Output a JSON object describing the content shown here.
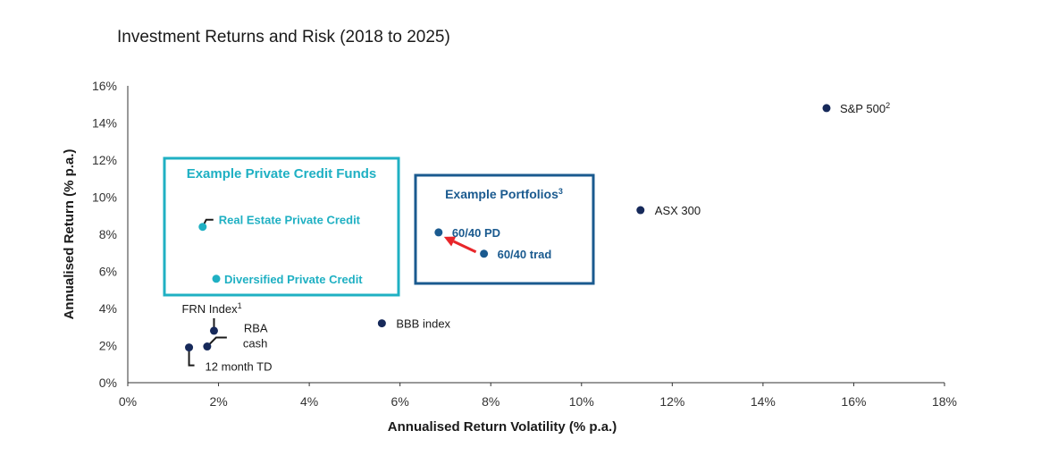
{
  "chart_data": {
    "type": "scatter",
    "title": "Investment Returns and Risk (2018 to 2025)",
    "xlabel": "Annualised Return Volatility (% p.a.)",
    "ylabel": "Annualised Return (% p.a.)",
    "xlim": [
      0,
      18
    ],
    "ylim": [
      0,
      16
    ],
    "x_ticks": [
      "0%",
      "2%",
      "4%",
      "6%",
      "8%",
      "10%",
      "12%",
      "14%",
      "16%",
      "18%"
    ],
    "y_ticks": [
      "0%",
      "2%",
      "4%",
      "6%",
      "8%",
      "10%",
      "12%",
      "14%",
      "16%"
    ],
    "points": [
      {
        "id": "sp500",
        "label": "S&P 500",
        "sup": "2",
        "x": 15.4,
        "y": 14.8,
        "color": "#16295a"
      },
      {
        "id": "asx300",
        "label": "ASX 300",
        "x": 11.3,
        "y": 9.3,
        "color": "#16295a"
      },
      {
        "id": "bbb",
        "label": "BBB index",
        "x": 5.6,
        "y": 3.2,
        "color": "#16295a"
      },
      {
        "id": "frn",
        "label": "FRN Index",
        "sup": "1",
        "x": 1.9,
        "y": 2.8,
        "color": "#16295a"
      },
      {
        "id": "rba",
        "label_lines": [
          "RBA",
          "cash"
        ],
        "x": 1.75,
        "y": 1.95,
        "color": "#16295a"
      },
      {
        "id": "td",
        "label": "12 month TD",
        "x": 1.35,
        "y": 1.9,
        "color": "#16295a"
      },
      {
        "id": "repc",
        "label": "Real Estate Private Credit",
        "x": 1.65,
        "y": 8.4,
        "color": "#1fb0c3"
      },
      {
        "id": "dpc",
        "label": "Diversified Private Credit",
        "x": 1.95,
        "y": 5.6,
        "color": "#1fb0c3"
      },
      {
        "id": "pd6040",
        "label": "60/40 PD",
        "x": 6.85,
        "y": 8.1,
        "color": "#1a5a8f"
      },
      {
        "id": "trad6040",
        "label": "60/40 trad",
        "x": 7.85,
        "y": 6.95,
        "color": "#1a5a8f"
      }
    ],
    "groups": [
      {
        "id": "private-credit",
        "title": "Example Private Credit Funds",
        "color": "#1fb0c3"
      },
      {
        "id": "portfolios",
        "title": "Example Portfolios",
        "sup": "3",
        "color": "#1a5a8f"
      }
    ],
    "arrow": {
      "from": "trad6040",
      "to": "pd6040",
      "color": "#e8262a"
    }
  }
}
